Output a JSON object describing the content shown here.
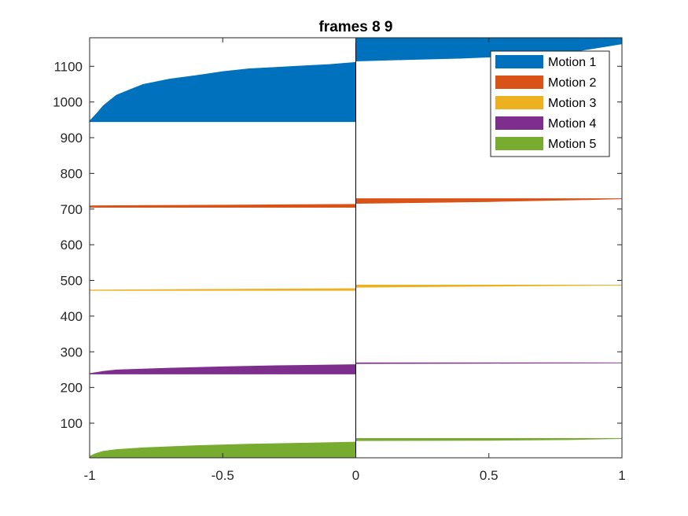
{
  "chart_data": {
    "type": "area",
    "title": "frames 8 9",
    "xlabel": "",
    "ylabel": "",
    "xlim": [
      -1,
      1
    ],
    "ylim": [
      3,
      1180
    ],
    "xticks": [
      -1,
      -0.5,
      0,
      0.5,
      1
    ],
    "xtick_labels": [
      "-1",
      "-0.5",
      "0",
      "0.5",
      "1"
    ],
    "yticks": [
      100,
      200,
      300,
      400,
      500,
      600,
      700,
      800,
      900,
      1000,
      1100
    ],
    "ytick_labels": [
      "100",
      "200",
      "300",
      "400",
      "500",
      "600",
      "700",
      "800",
      "900",
      "1000",
      "1100"
    ],
    "legend_position": "top-right",
    "grid": false,
    "series": [
      {
        "name": "Motion 1",
        "color": "#0072BD",
        "left_base": 944,
        "left_top": [
          [
            -1,
            948
          ],
          [
            -0.97,
            972
          ],
          [
            -0.95,
            990
          ],
          [
            -0.9,
            1020
          ],
          [
            -0.85,
            1035
          ],
          [
            -0.8,
            1050
          ],
          [
            -0.7,
            1065
          ],
          [
            -0.6,
            1075
          ],
          [
            -0.5,
            1086
          ],
          [
            -0.4,
            1094
          ],
          [
            -0.3,
            1098
          ],
          [
            -0.2,
            1102
          ],
          [
            -0.1,
            1106
          ],
          [
            0,
            1112
          ]
        ],
        "right_base": [
          [
            0,
            1114
          ],
          [
            0.2,
            1118
          ],
          [
            0.4,
            1122
          ],
          [
            0.6,
            1128
          ],
          [
            0.8,
            1138
          ],
          [
            0.9,
            1150
          ],
          [
            1,
            1162
          ]
        ],
        "right_top": 1180
      },
      {
        "name": "Motion 2",
        "color": "#D95319",
        "left_base": 704,
        "left_top": [
          [
            -1,
            710
          ],
          [
            -0.5,
            712
          ],
          [
            0,
            714
          ]
        ],
        "right_base": [
          [
            0,
            715
          ],
          [
            0.5,
            720
          ],
          [
            0.9,
            726
          ],
          [
            1,
            728
          ]
        ],
        "right_top": 730
      },
      {
        "name": "Motion 3",
        "color": "#EDB120",
        "left_base": 471,
        "left_top": [
          [
            -1,
            474
          ],
          [
            -0.5,
            476
          ],
          [
            0,
            478
          ]
        ],
        "right_base": [
          [
            0,
            480
          ],
          [
            0.5,
            483
          ],
          [
            1,
            486
          ]
        ],
        "right_top": 488
      },
      {
        "name": "Motion 4",
        "color": "#7E2F8E",
        "left_base": 237,
        "left_top": [
          [
            -1,
            240
          ],
          [
            -0.95,
            246
          ],
          [
            -0.9,
            250
          ],
          [
            -0.7,
            255
          ],
          [
            -0.5,
            259
          ],
          [
            -0.3,
            262
          ],
          [
            -0.1,
            264
          ],
          [
            0,
            265
          ]
        ],
        "right_base": [
          [
            0,
            266
          ],
          [
            0.5,
            267
          ],
          [
            1,
            268
          ]
        ],
        "right_top": 270
      },
      {
        "name": "Motion 5",
        "color": "#77AC30",
        "left_base": 3,
        "left_top": [
          [
            -1,
            8
          ],
          [
            -0.98,
            15
          ],
          [
            -0.95,
            22
          ],
          [
            -0.9,
            27
          ],
          [
            -0.8,
            32
          ],
          [
            -0.6,
            38
          ],
          [
            -0.4,
            42
          ],
          [
            -0.2,
            45
          ],
          [
            0,
            48
          ]
        ],
        "right_base": [
          [
            0,
            50
          ],
          [
            0.5,
            51
          ],
          [
            0.8,
            53
          ],
          [
            1,
            56
          ]
        ],
        "right_top": 58
      }
    ]
  }
}
